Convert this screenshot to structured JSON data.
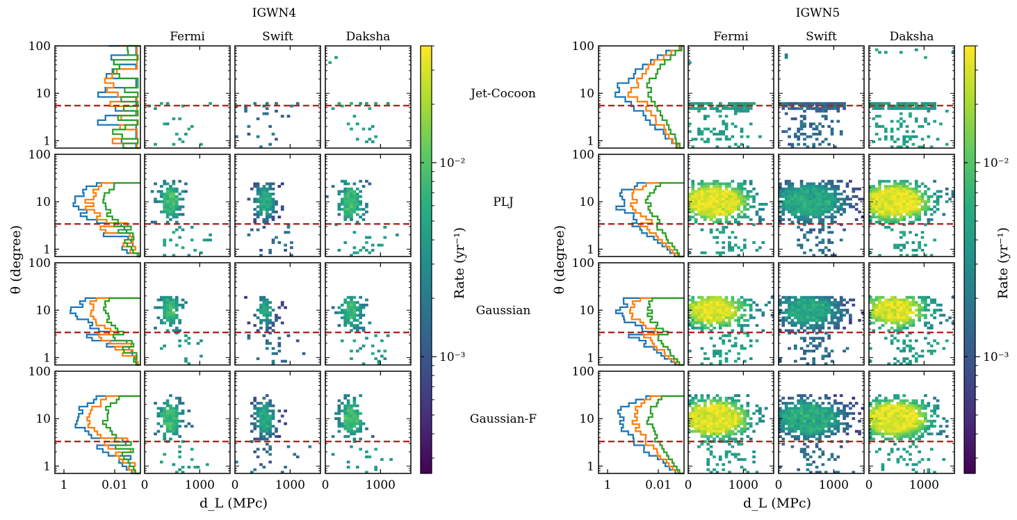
{
  "chart_data": {
    "type": "heatmap",
    "description_free": true,
    "blocks": [
      {
        "title": "IGWN4",
        "density": 0.55
      },
      {
        "title": "IGWN5",
        "density": 1.0
      }
    ],
    "columns": [
      "Fermi",
      "Swift",
      "Daksha"
    ],
    "rows": [
      {
        "label": "Jet-Cocoon",
        "threshold_deg": 5.5,
        "range_deg": [
          1,
          100
        ]
      },
      {
        "label": "PLJ",
        "threshold_deg": 3.4,
        "range_deg": [
          1,
          25
        ]
      },
      {
        "label": "Gaussian",
        "threshold_deg": 3.4,
        "range_deg": [
          1,
          18
        ]
      },
      {
        "label": "Gaussian-F",
        "threshold_deg": 3.3,
        "range_deg": [
          1,
          30
        ]
      }
    ],
    "ylabel": "θ (degree)",
    "ylim": [
      0.7,
      100
    ],
    "yticks": [
      "1",
      "10",
      "100"
    ],
    "hist_xticks": [
      "1",
      "0.01"
    ],
    "xlabel": "d_L (MPc)",
    "xlim": [
      0,
      1550
    ],
    "xticks": [
      "0",
      "1000"
    ],
    "colorbar": {
      "label": "Rate (yr⁻¹)",
      "scale": "log",
      "range": [
        0.00025,
        0.04
      ],
      "ticks": [
        "10⁻²",
        "10⁻³"
      ],
      "tick_values": [
        0.01,
        0.001
      ]
    },
    "colors": {
      "hist_series": [
        "#1f77b4",
        "#ff7f0e",
        "#2ca02c"
      ],
      "threshold_line": "#b22222"
    }
  }
}
